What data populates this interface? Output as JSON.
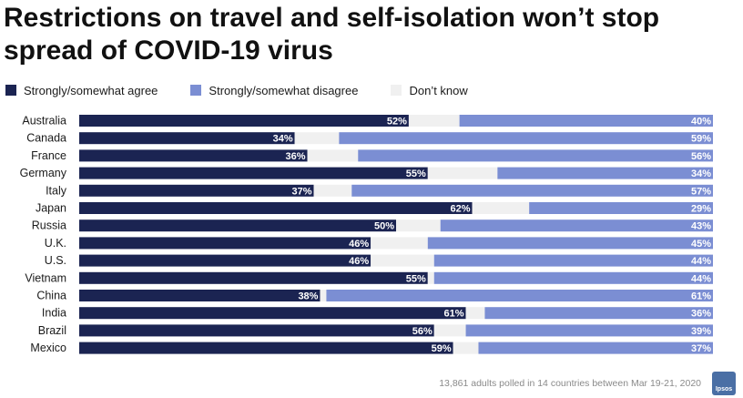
{
  "title": "Restrictions on travel and self-isolation won’t stop spread of COVID-19 virus",
  "legend": [
    {
      "label": "Strongly/somewhat agree",
      "color": "#1b2452"
    },
    {
      "label": "Strongly/somewhat disagree",
      "color": "#7b8ed3"
    },
    {
      "label": "Don’t know",
      "color": "#f0f0f0"
    }
  ],
  "footnote": "13,861 adults polled in 14 countries between Mar 19-21, 2020",
  "logo_text": "Ipsos",
  "chart_data": {
    "type": "bar",
    "orientation": "horizontal",
    "stacked": true,
    "xlim": [
      0,
      100
    ],
    "categories": [
      "Australia",
      "Canada",
      "France",
      "Germany",
      "Italy",
      "Japan",
      "Russia",
      "U.K.",
      "U.S.",
      "Vietnam",
      "China",
      "India",
      "Brazil",
      "Mexico"
    ],
    "series": [
      {
        "name": "Strongly/somewhat agree",
        "color": "#1b2452",
        "values": [
          52,
          34,
          36,
          55,
          37,
          62,
          50,
          46,
          46,
          55,
          38,
          61,
          56,
          59
        ]
      },
      {
        "name": "Don’t know",
        "color": "#f0f0f0",
        "values": [
          8,
          7,
          8,
          11,
          6,
          9,
          7,
          9,
          10,
          1,
          1,
          3,
          5,
          4
        ]
      },
      {
        "name": "Strongly/somewhat disagree",
        "color": "#7b8ed3",
        "values": [
          40,
          59,
          56,
          34,
          57,
          29,
          43,
          45,
          44,
          44,
          61,
          36,
          39,
          37
        ]
      }
    ],
    "data_labels": {
      "agree": [
        "52%",
        "34%",
        "36%",
        "55%",
        "37%",
        "62%",
        "50%",
        "46%",
        "46%",
        "55%",
        "38%",
        "61%",
        "56%",
        "59%"
      ],
      "disagree": [
        "40%",
        "59%",
        "56%",
        "34%",
        "57%",
        "29%",
        "43%",
        "45%",
        "44%",
        "44%",
        "61%",
        "36%",
        "39%",
        "37%"
      ]
    }
  }
}
